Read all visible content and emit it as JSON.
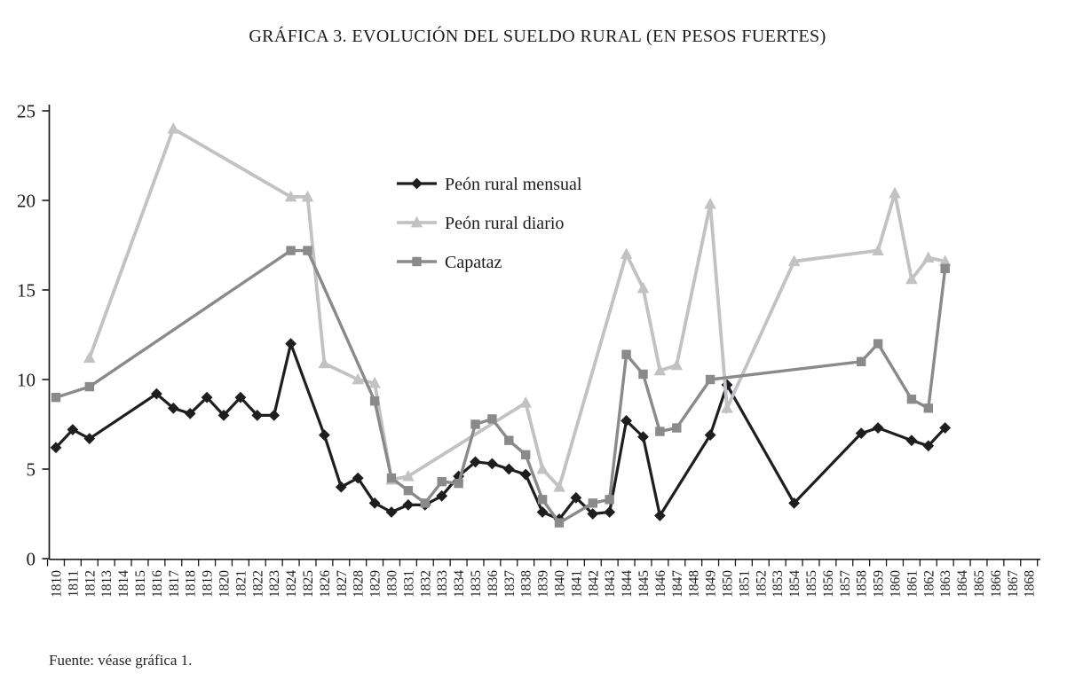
{
  "title": "GRÁFICA 3. EVOLUCIÓN DEL SUELDO RURAL (EN PESOS FUERTES)",
  "source_note": "Fuente: véase gráfica 1.",
  "colors": {
    "axis": "#1a1a1a",
    "text": "#1b1b1b"
  },
  "chart_data": {
    "type": "line",
    "title": "GRÁFICA 3. EVOLUCIÓN DEL SUELDO RURAL (EN PESOS FUERTES)",
    "xlabel": "",
    "ylabel": "",
    "ylim": [
      0,
      25
    ],
    "y_ticks": [
      0,
      5,
      10,
      15,
      20,
      25
    ],
    "grid": false,
    "legend_position": "inside-top-center",
    "categories": [
      1810,
      1811,
      1812,
      1813,
      1814,
      1815,
      1816,
      1817,
      1818,
      1819,
      1820,
      1821,
      1822,
      1823,
      1824,
      1825,
      1826,
      1827,
      1828,
      1829,
      1830,
      1831,
      1832,
      1833,
      1834,
      1835,
      1836,
      1837,
      1838,
      1839,
      1840,
      1841,
      1842,
      1843,
      1844,
      1845,
      1846,
      1847,
      1848,
      1849,
      1850,
      1851,
      1852,
      1853,
      1854,
      1855,
      1856,
      1857,
      1858,
      1859,
      1860,
      1861,
      1862,
      1863,
      1864,
      1865,
      1866,
      1867,
      1868
    ],
    "series": [
      {
        "name": "Peón rural mensual",
        "marker": "diamond",
        "color": "#1e1e20",
        "line_width": 3.2,
        "values": [
          6.2,
          7.2,
          6.7,
          null,
          null,
          null,
          9.2,
          8.4,
          8.1,
          9,
          8,
          9,
          8,
          8,
          12,
          null,
          6.9,
          4,
          4.5,
          3.1,
          2.6,
          3,
          3,
          3.5,
          4.6,
          5.4,
          5.3,
          5,
          4.7,
          2.6,
          2.2,
          3.4,
          2.5,
          2.6,
          7.7,
          6.8,
          2.4,
          null,
          null,
          6.9,
          9.7,
          null,
          null,
          null,
          3.1,
          null,
          null,
          null,
          7,
          7.3,
          null,
          6.6,
          6.3,
          7.3,
          null,
          null,
          null,
          null,
          null
        ]
      },
      {
        "name": "Peón rural diario",
        "marker": "triangle",
        "color": "#c2c2c4",
        "line_width": 3.8,
        "values": [
          null,
          null,
          11.2,
          null,
          null,
          null,
          null,
          24,
          null,
          null,
          null,
          null,
          null,
          null,
          20.2,
          20.2,
          10.9,
          null,
          10,
          9.8,
          4.4,
          4.6,
          null,
          null,
          null,
          null,
          null,
          null,
          8.7,
          5,
          4,
          null,
          null,
          null,
          17,
          15.1,
          10.5,
          10.8,
          null,
          19.8,
          8.4,
          null,
          null,
          null,
          16.6,
          null,
          null,
          null,
          null,
          17.2,
          20.4,
          15.6,
          16.8,
          16.6,
          null,
          null,
          null,
          null,
          null
        ]
      },
      {
        "name": "Capataz",
        "marker": "square",
        "color": "#8a8a8c",
        "line_width": 3.4,
        "values": [
          9,
          null,
          9.6,
          null,
          null,
          null,
          null,
          null,
          null,
          null,
          null,
          null,
          null,
          null,
          17.2,
          17.2,
          null,
          null,
          null,
          8.8,
          4.5,
          3.8,
          3.1,
          4.3,
          4.2,
          7.5,
          7.8,
          6.6,
          5.8,
          3.3,
          2,
          null,
          3.1,
          3.3,
          11.4,
          10.3,
          7.1,
          7.3,
          null,
          10,
          null,
          null,
          null,
          null,
          null,
          null,
          null,
          null,
          11,
          12,
          null,
          8.9,
          8.4,
          16.2,
          null,
          null,
          null,
          null,
          null
        ]
      }
    ]
  }
}
